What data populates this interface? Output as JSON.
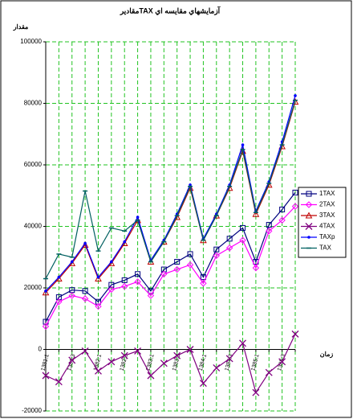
{
  "chart_data": {
    "type": "line",
    "title": "مقاديرTAX آزمايشهاي مقايسه اي",
    "ylabel": "مقدار",
    "xlabel": "زمان",
    "categories": [
      "1381:1",
      null,
      "1381:3",
      null,
      "1382:1",
      null,
      "1382:3",
      null,
      "1383:1",
      null,
      "1383:3",
      null,
      "1384:1",
      null,
      "1384:3",
      null,
      "1385:1",
      null,
      "1385:3",
      null
    ],
    "ylim": [
      -20000,
      100000
    ],
    "yticks": [
      -20000,
      0,
      20000,
      40000,
      60000,
      80000,
      100000
    ],
    "grid": true,
    "legend": "right",
    "series": [
      {
        "name": "1TAX",
        "color": "#000080",
        "marker": "square",
        "values": [
          9000,
          17000,
          19300,
          19000,
          15500,
          21000,
          22500,
          24500,
          19000,
          26000,
          28500,
          31000,
          23500,
          32500,
          36000,
          39500,
          28500,
          40500,
          45500,
          51000
        ]
      },
      {
        "name": "2TAX",
        "color": "#ff00ff",
        "marker": "diamond",
        "values": [
          7500,
          15500,
          17500,
          16500,
          14000,
          19500,
          20500,
          22000,
          17500,
          24500,
          26000,
          27500,
          21500,
          30500,
          33000,
          35500,
          26500,
          38500,
          42000,
          46500
        ]
      },
      {
        "name": "3TAX",
        "color": "#c00000",
        "marker": "triangle",
        "values": [
          18500,
          23000,
          28000,
          34000,
          23000,
          28000,
          34500,
          42000,
          28500,
          35000,
          43000,
          52500,
          35500,
          43500,
          52500,
          64500,
          44000,
          53500,
          66000,
          80500
        ]
      },
      {
        "name": "4TAX",
        "color": "#800080",
        "marker": "x",
        "values": [
          -8500,
          -10500,
          -3500,
          -500,
          -7000,
          -4000,
          -2000,
          -500,
          -8500,
          -4500,
          -2000,
          0,
          -11000,
          -6000,
          -3000,
          2000,
          -14000,
          -7500,
          -4000,
          5000
        ]
      },
      {
        "name": "TAXp",
        "color": "#0000ff",
        "marker": "dot",
        "values": [
          19000,
          23500,
          28500,
          34500,
          23500,
          28500,
          35000,
          43000,
          29000,
          35500,
          44000,
          53500,
          36000,
          44000,
          53500,
          66500,
          45000,
          54500,
          67500,
          82500
        ]
      },
      {
        "name": "TAX",
        "color": "#006060",
        "marker": "dash",
        "values": [
          23000,
          31000,
          30000,
          51500,
          32000,
          39500,
          38500,
          42000,
          28500,
          35000,
          43500,
          53000,
          35500,
          43500,
          53000,
          65000,
          44500,
          54000,
          66500,
          81000
        ]
      }
    ]
  }
}
